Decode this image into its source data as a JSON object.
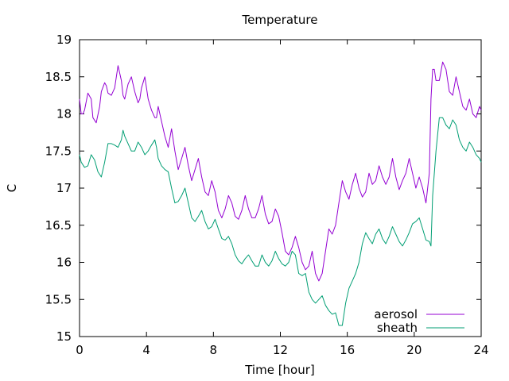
{
  "chart_data": {
    "type": "line",
    "title": "Temperature",
    "xlabel": "Time [hour]",
    "ylabel": "C",
    "xlim": [
      0,
      24
    ],
    "ylim": [
      15,
      19
    ],
    "xticks": [
      0,
      4,
      8,
      12,
      16,
      20,
      24
    ],
    "yticks": [
      15,
      15.5,
      16,
      16.5,
      17,
      17.5,
      18,
      18.5,
      19
    ],
    "ytick_labels": [
      "15",
      "15.5",
      "16",
      "16.5",
      "17",
      "17.5",
      "18",
      "18.5",
      "19"
    ],
    "grid": false,
    "legend_position": "bottom-right",
    "series": [
      {
        "name": "aerosol",
        "color": "#9400d3",
        "x": [
          0,
          0.1,
          0.2,
          0.3,
          0.5,
          0.7,
          0.8,
          1.0,
          1.2,
          1.3,
          1.5,
          1.6,
          1.7,
          1.9,
          2.1,
          2.3,
          2.5,
          2.6,
          2.7,
          2.9,
          3.1,
          3.3,
          3.5,
          3.6,
          3.7,
          3.9,
          4.1,
          4.3,
          4.5,
          4.6,
          4.7,
          4.9,
          5.1,
          5.3,
          5.5,
          5.7,
          5.9,
          6.1,
          6.3,
          6.5,
          6.7,
          6.9,
          7.1,
          7.3,
          7.5,
          7.7,
          7.9,
          8.1,
          8.3,
          8.5,
          8.7,
          8.9,
          9.1,
          9.3,
          9.5,
          9.7,
          9.9,
          10.1,
          10.3,
          10.5,
          10.7,
          10.9,
          11.1,
          11.3,
          11.5,
          11.7,
          11.9,
          12.1,
          12.3,
          12.5,
          12.7,
          12.9,
          13.1,
          13.3,
          13.5,
          13.7,
          13.9,
          14.1,
          14.3,
          14.5,
          14.7,
          14.9,
          15.1,
          15.3,
          15.5,
          15.7,
          15.9,
          16.1,
          16.3,
          16.5,
          16.7,
          16.9,
          17.1,
          17.3,
          17.5,
          17.7,
          17.9,
          18.1,
          18.3,
          18.5,
          18.7,
          18.9,
          19.1,
          19.3,
          19.5,
          19.7,
          19.9,
          20.1,
          20.3,
          20.5,
          20.7,
          20.9,
          21.0,
          21.1,
          21.2,
          21.3,
          21.5,
          21.7,
          21.9,
          22.1,
          22.3,
          22.5,
          22.7,
          22.9,
          23.1,
          23.3,
          23.5,
          23.7,
          23.9,
          24.0
        ],
        "y": [
          18.2,
          18.0,
          18.0,
          18.05,
          18.28,
          18.2,
          17.95,
          17.88,
          18.1,
          18.3,
          18.42,
          18.38,
          18.28,
          18.25,
          18.35,
          18.65,
          18.45,
          18.25,
          18.2,
          18.4,
          18.5,
          18.3,
          18.15,
          18.2,
          18.35,
          18.5,
          18.2,
          18.05,
          17.95,
          17.95,
          18.1,
          17.9,
          17.7,
          17.55,
          17.8,
          17.5,
          17.25,
          17.4,
          17.55,
          17.3,
          17.1,
          17.25,
          17.4,
          17.15,
          16.95,
          16.9,
          17.1,
          16.95,
          16.7,
          16.6,
          16.72,
          16.9,
          16.8,
          16.62,
          16.58,
          16.7,
          16.9,
          16.72,
          16.6,
          16.6,
          16.72,
          16.9,
          16.65,
          16.52,
          16.55,
          16.72,
          16.62,
          16.4,
          16.15,
          16.1,
          16.2,
          16.35,
          16.2,
          16.0,
          15.9,
          15.95,
          16.15,
          15.85,
          15.75,
          15.85,
          16.15,
          16.45,
          16.38,
          16.5,
          16.8,
          17.1,
          16.95,
          16.85,
          17.05,
          17.2,
          17.0,
          16.88,
          16.95,
          17.2,
          17.05,
          17.1,
          17.3,
          17.15,
          17.05,
          17.15,
          17.4,
          17.15,
          16.98,
          17.1,
          17.2,
          17.4,
          17.2,
          17.0,
          17.15,
          17.0,
          16.8,
          17.2,
          18.2,
          18.6,
          18.6,
          18.45,
          18.45,
          18.7,
          18.6,
          18.3,
          18.25,
          18.5,
          18.3,
          18.1,
          18.05,
          18.2,
          18.0,
          17.95,
          18.1,
          18.05
        ],
        "y_fixed": [
          18.2,
          18.0,
          18.0,
          18.05,
          18.28,
          18.2,
          17.95,
          17.88,
          18.1,
          18.3,
          18.42,
          18.38,
          18.28,
          18.25,
          18.35,
          18.65,
          18.45,
          18.25,
          18.2,
          18.4,
          18.5,
          18.3,
          18.15,
          18.2,
          18.35,
          18.5,
          18.2,
          18.05,
          17.95,
          17.95,
          18.1,
          17.9,
          17.7,
          17.55,
          17.8,
          17.5,
          17.25,
          17.4,
          17.55,
          17.3,
          17.1,
          17.25,
          17.4,
          17.15,
          16.95,
          16.9,
          17.1,
          16.95,
          16.7,
          16.6,
          16.72,
          16.9,
          16.8,
          16.62,
          16.58,
          16.7,
          16.9,
          16.72,
          16.6,
          16.6,
          16.72,
          16.9,
          16.65,
          16.52,
          16.55,
          16.72,
          16.62,
          16.4,
          16.15,
          16.1,
          16.2,
          16.35,
          16.2,
          16.0,
          15.9,
          15.95,
          16.15,
          15.85,
          15.75,
          15.85,
          16.15,
          16.45,
          16.38,
          16.5,
          16.8,
          17.1,
          16.95,
          16.85,
          17.05,
          17.2,
          17.0,
          16.88,
          16.95,
          17.2,
          17.05,
          17.1,
          17.3,
          17.15,
          17.05,
          17.15,
          17.4,
          17.15,
          16.98,
          17.1,
          17.2,
          17.4,
          17.2,
          17.0,
          17.15,
          17.0,
          16.8,
          17.2,
          18.2,
          18.6,
          18.6,
          18.45,
          18.45,
          18.7,
          18.6,
          18.3,
          18.25,
          18.5,
          18.3,
          18.1,
          18.05,
          18.2,
          18.0,
          17.95,
          18.1,
          18.05
        ]
      },
      {
        "name": "sheath",
        "color": "#009e73",
        "x": [
          0,
          0.1,
          0.3,
          0.5,
          0.7,
          0.9,
          1.1,
          1.3,
          1.5,
          1.7,
          1.9,
          2.1,
          2.3,
          2.5,
          2.6,
          2.7,
          2.9,
          3.1,
          3.3,
          3.5,
          3.7,
          3.9,
          4.1,
          4.3,
          4.5,
          4.6,
          4.7,
          4.9,
          5.1,
          5.3,
          5.5,
          5.7,
          5.9,
          6.1,
          6.3,
          6.5,
          6.7,
          6.9,
          7.1,
          7.3,
          7.5,
          7.7,
          7.9,
          8.1,
          8.3,
          8.5,
          8.7,
          8.9,
          9.1,
          9.3,
          9.5,
          9.7,
          9.9,
          10.1,
          10.3,
          10.5,
          10.7,
          10.9,
          11.1,
          11.3,
          11.5,
          11.7,
          11.9,
          12.1,
          12.3,
          12.5,
          12.7,
          12.9,
          13.1,
          13.3,
          13.5,
          13.7,
          13.9,
          14.1,
          14.3,
          14.5,
          14.7,
          14.9,
          15.1,
          15.3,
          15.5,
          15.7,
          15.9,
          16.1,
          16.3,
          16.5,
          16.7,
          16.9,
          17.1,
          17.3,
          17.5,
          17.7,
          17.9,
          18.1,
          18.3,
          18.5,
          18.7,
          18.9,
          19.1,
          19.3,
          19.5,
          19.7,
          19.9,
          20.1,
          20.3,
          20.5,
          20.7,
          20.9,
          21.0,
          21.1,
          21.3,
          21.5,
          21.7,
          21.9,
          22.1,
          22.3,
          22.5,
          22.7,
          22.9,
          23.1,
          23.3,
          23.5,
          23.7,
          23.9,
          24.0
        ],
        "y": [
          17.45,
          17.35,
          17.28,
          17.3,
          17.45,
          17.38,
          17.22,
          17.15,
          17.35,
          17.6,
          17.6,
          17.58,
          17.55,
          17.65,
          17.78,
          17.7,
          17.6,
          17.5,
          17.5,
          17.62,
          17.55,
          17.45,
          17.5,
          17.58,
          17.65,
          17.55,
          17.4,
          17.3,
          17.25,
          17.22,
          17.0,
          16.8,
          16.82,
          16.9,
          17.0,
          16.8,
          16.6,
          16.55,
          16.62,
          16.7,
          16.55,
          16.45,
          16.48,
          16.58,
          16.45,
          16.32,
          16.3,
          16.35,
          16.25,
          16.1,
          16.02,
          15.98,
          16.05,
          16.1,
          16.02,
          15.95,
          15.95,
          16.1,
          16.0,
          15.95,
          16.02,
          16.15,
          16.05,
          15.98,
          15.95,
          16.0,
          16.15,
          16.1,
          15.85,
          15.82,
          15.85,
          15.6,
          15.5,
          15.45,
          15.5,
          15.55,
          15.42,
          15.35,
          15.3,
          15.32,
          15.15,
          15.15,
          15.45,
          15.65,
          15.75,
          15.85,
          16.0,
          16.25,
          16.4,
          16.32,
          16.25,
          16.38,
          16.45,
          16.32,
          16.25,
          16.35,
          16.48,
          16.38,
          16.28,
          16.22,
          16.3,
          16.4,
          16.52,
          16.55,
          16.6,
          16.45,
          16.3,
          16.28,
          16.22,
          16.9,
          17.5,
          17.95,
          17.95,
          17.85,
          17.8,
          17.92,
          17.85,
          17.65,
          17.55,
          17.5,
          17.62,
          17.55,
          17.45,
          17.4,
          17.35
        ],
        "y_fixed": [
          17.45,
          17.35,
          17.28,
          17.3,
          17.45,
          17.38,
          17.22,
          17.15,
          17.35,
          17.6,
          17.6,
          17.58,
          17.55,
          17.65,
          17.78,
          17.7,
          17.6,
          17.5,
          17.5,
          17.62,
          17.55,
          17.45,
          17.5,
          17.58,
          17.65,
          17.55,
          17.4,
          17.3,
          17.25,
          17.22,
          17.0,
          16.8,
          16.82,
          16.9,
          17.0,
          16.8,
          16.6,
          16.55,
          16.62,
          16.7,
          16.55,
          16.45,
          16.48,
          16.58,
          16.45,
          16.32,
          16.3,
          16.35,
          16.25,
          16.1,
          16.02,
          15.98,
          16.05,
          16.1,
          16.02,
          15.95,
          15.95,
          16.1,
          16.0,
          15.95,
          16.02,
          16.15,
          16.05,
          15.98,
          15.95,
          16.0,
          16.15,
          16.1,
          15.85,
          15.82,
          15.85,
          15.6,
          15.5,
          15.45,
          15.5,
          15.55,
          15.42,
          15.35,
          15.3,
          15.32,
          15.15,
          15.15,
          15.45,
          15.65,
          15.75,
          15.85,
          16.0,
          16.25,
          16.4,
          16.32,
          16.25,
          16.38,
          16.45,
          16.32,
          16.25,
          16.35,
          16.48,
          16.38,
          16.28,
          16.22,
          16.3,
          16.4,
          16.52,
          16.55,
          16.6,
          16.45,
          16.3,
          16.28,
          16.22,
          16.9,
          17.5,
          17.95,
          17.95,
          17.85,
          17.8,
          17.92,
          17.85,
          17.65,
          17.55,
          17.5,
          17.62,
          17.55,
          17.45,
          17.4,
          17.35
        ]
      }
    ]
  }
}
